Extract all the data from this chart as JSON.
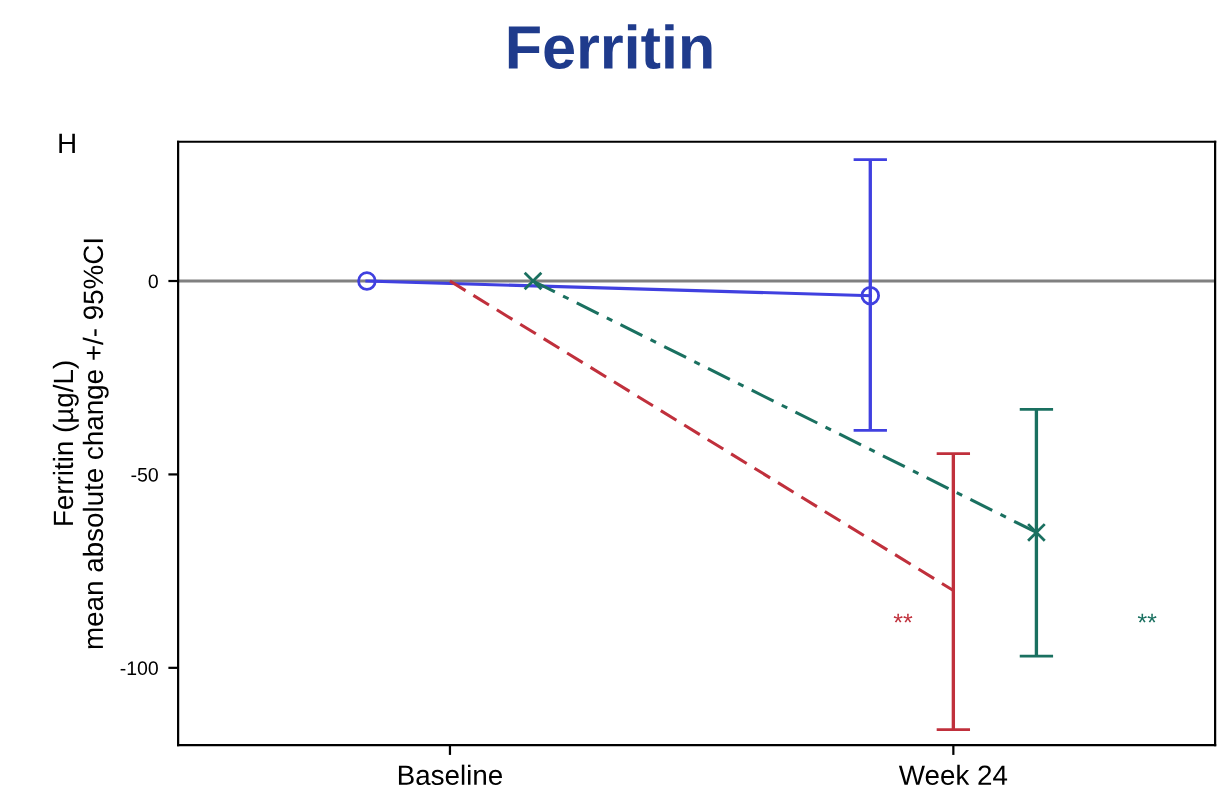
{
  "chart_data": {
    "type": "line",
    "title": "Ferritin",
    "ylabel": "Ferritin (µg/L)\nmean absolute change +/- 95%CI",
    "categories": [
      "Baseline",
      "Week 24"
    ],
    "ylim": [
      -120,
      36
    ],
    "yticks": [
      0,
      -50,
      -100
    ],
    "grid": false,
    "legend": false,
    "series": [
      {
        "color": "#4040e0",
        "values": [
          0,
          -3.8
        ],
        "errors": [
          null,
          [
            -38.6,
            31.4
          ]
        ],
        "marker": "circle",
        "line_style": "solid"
      },
      {
        "color": "#c0303c",
        "values": [
          0,
          -80
        ],
        "errors": [
          null,
          [
            -116,
            -44.6
          ]
        ],
        "marker": "none",
        "line_style": "dashed"
      },
      {
        "color": "#1a7060",
        "values": [
          0,
          -65
        ],
        "errors": [
          null,
          [
            -97,
            -33.2
          ]
        ],
        "marker": "cross",
        "line_style": "dashdot"
      }
    ],
    "ref_lines": [
      {
        "axis": "y",
        "value": 0,
        "color": "#808080"
      }
    ],
    "annotations": [
      "H",
      "**",
      "**"
    ]
  }
}
